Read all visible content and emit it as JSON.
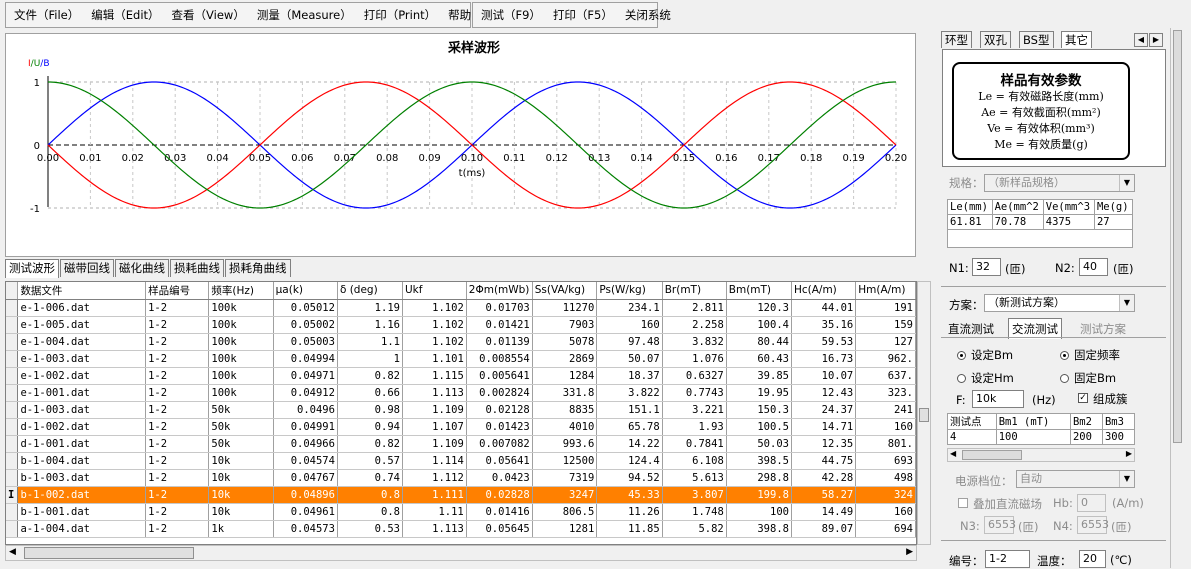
{
  "menu": {
    "main": [
      "文件（File）",
      "编辑（Edit）",
      "查看（View）",
      "测量（Measure）",
      "打印（Print）",
      "帮助（Help）"
    ],
    "tools": [
      "测试（F9）",
      "打印（F5）",
      "关闭系统"
    ]
  },
  "chart": {
    "title": "采样波形",
    "ylabels": [
      "I",
      "/U",
      "/B"
    ]
  },
  "chart_data": {
    "type": "line",
    "title": "采样波形",
    "xlabel": "t(ms)",
    "ylabel": "I/U/B",
    "xlim": [
      0,
      0.2
    ],
    "ylim": [
      -1,
      1
    ],
    "xticks": [
      "0.00",
      "0.01",
      "0.02",
      "0.03",
      "0.04",
      "0.05",
      "0.06",
      "0.07",
      "0.08",
      "0.09",
      "0.10",
      "0.11",
      "0.12",
      "0.13",
      "0.14",
      "0.15",
      "0.16",
      "0.17",
      "0.18",
      "0.19",
      "0.20"
    ],
    "yticks": [
      "1",
      "0",
      "-1"
    ],
    "grid": true,
    "series": [
      {
        "color": "#0000ff",
        "function": "sin",
        "period": 0.1,
        "amplitude": 1,
        "phase_deg": 0
      },
      {
        "color": "#ff0000",
        "function": "sin",
        "period": 0.1,
        "amplitude": 1,
        "phase_deg": 180
      },
      {
        "color": "#008000",
        "function": "sin",
        "period": 0.1,
        "amplitude": 1,
        "phase_deg": 90
      }
    ]
  },
  "tabs": [
    "测试波形",
    "磁带回线",
    "磁化曲线",
    "损耗曲线",
    "损耗角曲线"
  ],
  "table": {
    "columns": [
      "数据文件",
      "样品编号",
      "频率(Hz)",
      "μa(k)",
      "δ (deg)",
      "Ukf",
      "2Φm(mWb)",
      "Ss(VA/kg)",
      "Ps(W/kg)",
      "Br(mT)",
      "Bm(mT)",
      "Hc(A/m)",
      "Hm(A/m)"
    ],
    "rows": [
      [
        "e-1-006.dat",
        "1-2",
        "100k",
        "0.05012",
        "1.19",
        "1.102",
        "0.01703",
        "11270",
        "234.1",
        "2.811",
        "120.3",
        "44.01",
        "191"
      ],
      [
        "e-1-005.dat",
        "1-2",
        "100k",
        "0.05002",
        "1.16",
        "1.102",
        "0.01421",
        "7903",
        "160",
        "2.258",
        "100.4",
        "35.16",
        "159"
      ],
      [
        "e-1-004.dat",
        "1-2",
        "100k",
        "0.05003",
        "1.1",
        "1.102",
        "0.01139",
        "5078",
        "97.48",
        "3.832",
        "80.44",
        "59.53",
        "127"
      ],
      [
        "e-1-003.dat",
        "1-2",
        "100k",
        "0.04994",
        "1",
        "1.101",
        "0.008554",
        "2869",
        "50.07",
        "1.076",
        "60.43",
        "16.73",
        "962."
      ],
      [
        "e-1-002.dat",
        "1-2",
        "100k",
        "0.04971",
        "0.82",
        "1.115",
        "0.005641",
        "1284",
        "18.37",
        "0.6327",
        "39.85",
        "10.07",
        "637."
      ],
      [
        "e-1-001.dat",
        "1-2",
        "100k",
        "0.04912",
        "0.66",
        "1.113",
        "0.002824",
        "331.8",
        "3.822",
        "0.7743",
        "19.95",
        "12.43",
        "323."
      ],
      [
        "d-1-003.dat",
        "1-2",
        "50k",
        "0.0496",
        "0.98",
        "1.109",
        "0.02128",
        "8835",
        "151.1",
        "3.221",
        "150.3",
        "24.37",
        "241"
      ],
      [
        "d-1-002.dat",
        "1-2",
        "50k",
        "0.04991",
        "0.94",
        "1.107",
        "0.01423",
        "4010",
        "65.78",
        "1.93",
        "100.5",
        "14.71",
        "160"
      ],
      [
        "d-1-001.dat",
        "1-2",
        "50k",
        "0.04966",
        "0.82",
        "1.109",
        "0.007082",
        "993.6",
        "14.22",
        "0.7841",
        "50.03",
        "12.35",
        "801."
      ],
      [
        "b-1-004.dat",
        "1-2",
        "10k",
        "0.04574",
        "0.57",
        "1.114",
        "0.05641",
        "12500",
        "124.4",
        "6.108",
        "398.5",
        "44.75",
        "693"
      ],
      [
        "b-1-003.dat",
        "1-2",
        "10k",
        "0.04767",
        "0.74",
        "1.112",
        "0.0423",
        "7319",
        "94.52",
        "5.613",
        "298.8",
        "42.28",
        "498"
      ],
      [
        "b-1-002.dat",
        "1-2",
        "10k",
        "0.04896",
        "0.8",
        "1.111",
        "0.02828",
        "3247",
        "45.33",
        "3.807",
        "199.8",
        "58.27",
        "324"
      ],
      [
        "b-1-001.dat",
        "1-2",
        "10k",
        "0.04961",
        "0.8",
        "1.11",
        "0.01416",
        "806.5",
        "11.26",
        "1.748",
        "100",
        "14.49",
        "160"
      ],
      [
        "a-1-004.dat",
        "1-2",
        "1k",
        "0.04573",
        "0.53",
        "1.113",
        "0.05645",
        "1281",
        "11.85",
        "5.82",
        "398.8",
        "89.07",
        "694"
      ]
    ],
    "selected_row": 11,
    "cursor_glyph": "I"
  },
  "right": {
    "tabs": [
      "环型",
      "双孔",
      "BS型",
      "其它"
    ],
    "card": {
      "title": "样品有效参数",
      "lines": [
        "Le = 有效磁路长度(mm)",
        "Ae = 有效截面积(mm²)",
        "Ve = 有效体积(mm³)",
        "Me = 有效质量(g)"
      ]
    },
    "spec_label": "规格：",
    "spec_value": "（新样品规格）",
    "params_headers": [
      "Le(mm)",
      "Ae(mm^2",
      "Ve(mm^3",
      "Me(g)"
    ],
    "params_values": [
      "61.81",
      "70.78",
      "4375",
      "27"
    ],
    "n1_label": "N1:",
    "n1_value": "32",
    "n1_unit": "(匝)",
    "n2_label": "N2:",
    "n2_value": "40",
    "n2_unit": "(匝)",
    "plan_label": "方案：",
    "plan_value": "（新测试方案）",
    "mode_tabs": [
      "直流测试",
      "交流测试",
      "测试方案"
    ],
    "radio_bm": "设定Bm",
    "radio_freq": "固定频率",
    "radio_hm": "设定Hm",
    "radio_fixbm": "固定Bm",
    "check_group": "组成簇",
    "f_label": "F:",
    "f_value": "10k",
    "f_unit": "(Hz)",
    "pts_headers": [
      "测试点",
      "Bm1 (mT)",
      "Bm2",
      "Bm3"
    ],
    "pts_values": [
      "4",
      "100",
      "200",
      "300"
    ],
    "power_label": "电源档位：",
    "power_value": "自动",
    "dc_label": "叠加直流磁场",
    "hb_label": "Hb:",
    "hb_value": "0",
    "hb_unit": "(A/m)",
    "n3_label": "N3:",
    "n3_value": "6553",
    "n3_unit": "(匝)",
    "n4_label": "N4:",
    "n4_value": "6553",
    "n4_unit": "(匝)",
    "id_label": "编号：",
    "id_value": "1-2",
    "temp_label": "温度：",
    "temp_value": "20",
    "temp_unit": "(℃)"
  },
  "colors": {
    "selection": "#ff8000",
    "series_blue": "#0000ff",
    "series_red": "#ff0000",
    "series_green": "#008000"
  }
}
